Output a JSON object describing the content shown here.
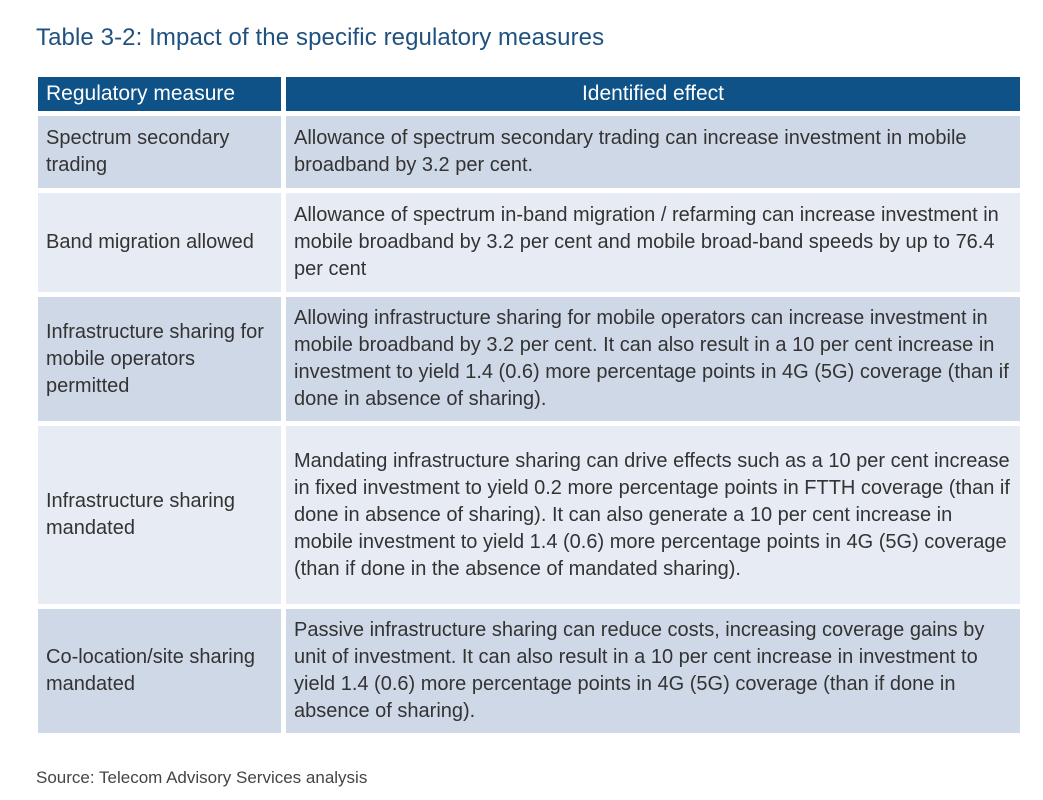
{
  "title": "Table 3-2: Impact of the specific regulatory measures",
  "table": {
    "headers": [
      "Regulatory measure",
      "Identified effect"
    ],
    "rows": [
      {
        "measure": "Spectrum secondary trading",
        "effect": "Allowance of spectrum secondary trading can increase investment in mobile broadband by 3.2 per cent."
      },
      {
        "measure": "Band migration allowed",
        "effect": "Allowance of spectrum in-band migration / refarming can increase investment in mobile broadband by 3.2 per cent and mobile broad-band speeds by up to 76.4 per cent"
      },
      {
        "measure": "Infrastructure sharing for mobile operators permitted",
        "effect": "Allowing infrastructure sharing for mobile operators can increase investment in mobile broadband by 3.2 per cent. It can also result in a 10 per cent increase in investment to yield 1.4 (0.6) more percentage points in 4G (5G) coverage (than if done in absence of sharing)."
      },
      {
        "measure": "Infrastructure sharing mandated",
        "effect": "Mandating infrastructure sharing can drive effects such as a 10 per cent increase in fixed investment to yield 0.2 more percentage points in FTTH coverage (than if done in absence of sharing). It can also generate a 10 per cent increase in mobile investment to yield 1.4 (0.6) more percentage points in 4G (5G) coverage (than if done in the absence of mandated sharing)."
      },
      {
        "measure": "Co-location/site sharing mandated",
        "effect": "Passive infrastructure sharing can reduce costs, increasing coverage gains by unit of investment. It can also result in a 10 per cent increase in investment to yield 1.4 (0.6) more percentage points in 4G (5G) coverage (than if done in absence of sharing)."
      }
    ]
  },
  "source": "Source: Telecom Advisory Services analysis",
  "colors": {
    "title": "#1f5180",
    "header_bg": "#0e5288",
    "row_dark": "#cfd8e7",
    "row_light": "#e7ecf4"
  }
}
